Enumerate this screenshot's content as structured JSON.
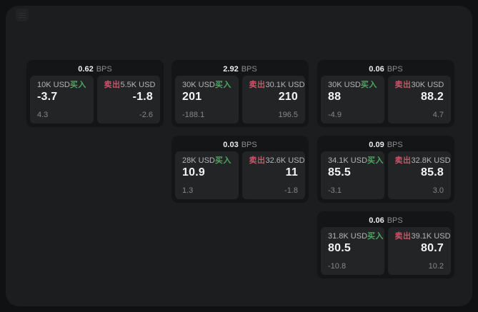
{
  "labels": {
    "bps": "BPS",
    "buy": "买入",
    "sell": "卖出"
  },
  "colors": {
    "buy_green": "#4da763",
    "sell_red": "#c85668",
    "window_bg": "#1c1d1e",
    "card_bg": "#141516",
    "panel_bg": "#232425"
  },
  "cards": [
    {
      "bps_value": "0.62",
      "buy": {
        "notional": "10K USD",
        "price": "-3.7",
        "delta": "4.3"
      },
      "sell": {
        "notional": "5.5K USD",
        "price": "-1.8",
        "delta": "-2.6"
      }
    },
    {
      "bps_value": "2.92",
      "buy": {
        "notional": "30K USD",
        "price": "201",
        "delta": "-188.1"
      },
      "sell": {
        "notional": "30.1K USD",
        "price": "210",
        "delta": "196.5"
      }
    },
    {
      "bps_value": "0.06",
      "buy": {
        "notional": "30K USD",
        "price": "88",
        "delta": "-4.9"
      },
      "sell": {
        "notional": "30K USD",
        "price": "88.2",
        "delta": "4.7"
      }
    },
    {
      "bps_value": "0.03",
      "buy": {
        "notional": "28K USD",
        "price": "10.9",
        "delta": "1.3"
      },
      "sell": {
        "notional": "32.6K USD",
        "price": "11",
        "delta": "-1.8"
      }
    },
    {
      "bps_value": "0.09",
      "buy": {
        "notional": "34.1K USD",
        "price": "85.5",
        "delta": "-3.1"
      },
      "sell": {
        "notional": "32.8K USD",
        "price": "85.8",
        "delta": "3.0"
      }
    },
    {
      "bps_value": "0.06",
      "buy": {
        "notional": "31.8K USD",
        "price": "80.5",
        "delta": "-10.8"
      },
      "sell": {
        "notional": "39.1K USD",
        "price": "80.7",
        "delta": "10.2"
      }
    }
  ]
}
